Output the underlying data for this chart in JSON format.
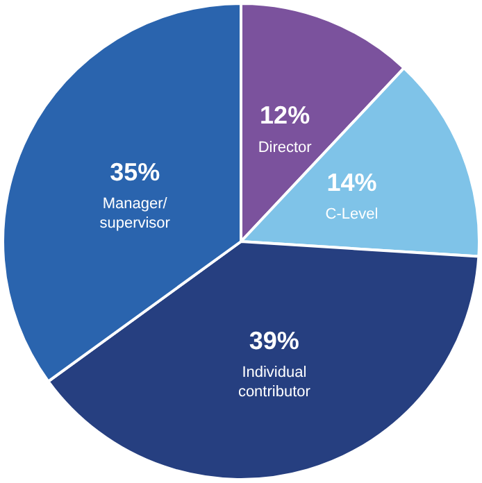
{
  "chart_data": {
    "type": "pie",
    "categories": [
      "Director",
      "C-Level",
      "Individual contributor",
      "Manager/ supervisor"
    ],
    "values": [
      12,
      14,
      39,
      35
    ],
    "value_labels": [
      "12%",
      "14%",
      "39%",
      "35%"
    ],
    "colors": [
      "#7b529d",
      "#7fc3e8",
      "#263f80",
      "#2a64ae"
    ],
    "legend": false
  }
}
